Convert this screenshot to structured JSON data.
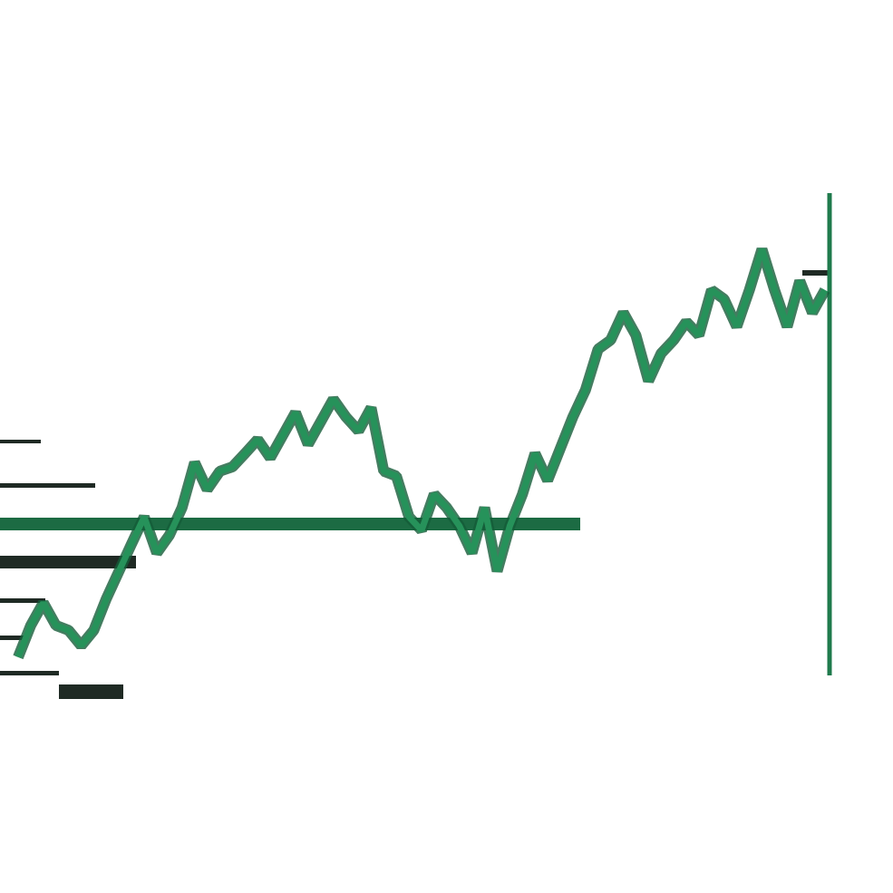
{
  "chart_data": {
    "type": "line",
    "categories": [
      null,
      null,
      null,
      null,
      null,
      null,
      null,
      null,
      null,
      null,
      null,
      null,
      null,
      null,
      null,
      null,
      null,
      null,
      null,
      null,
      null,
      null,
      null,
      null,
      null,
      null,
      null,
      null,
      null,
      null,
      null,
      null,
      null,
      null,
      null,
      null,
      null,
      null,
      null,
      null,
      null,
      null,
      null,
      null,
      null,
      null,
      null,
      null,
      null,
      null,
      null,
      null,
      null,
      null,
      null,
      null,
      null,
      null,
      null,
      null,
      null,
      null,
      null,
      null,
      null
    ],
    "series": [
      {
        "color": "#26925a",
        "values": [
          3.8,
          10.4,
          15.1,
          10.4,
          9.4,
          6.2,
          9.4,
          16.0,
          21.7,
          27.4,
          33.0,
          25.5,
          29.2,
          34.9,
          44.3,
          38.7,
          42.5,
          43.4,
          46.2,
          49.1,
          45.3,
          50.0,
          54.7,
          48.1,
          52.8,
          57.5,
          53.8,
          50.9,
          55.7,
          42.5,
          41.5,
          33.0,
          30.2,
          37.7,
          34.9,
          31.1,
          25.5,
          34.9,
          21.7,
          31.1,
          37.7,
          46.2,
          40.6,
          47.2,
          53.8,
          59.4,
          67.9,
          69.8,
          75.5,
          70.8,
          61.3,
          67.0,
          69.8,
          73.6,
          70.8,
          80.2,
          78.3,
          72.6,
          80.2,
          88.7,
          80.2,
          72.6,
          82.1,
          75.5,
          80.2
        ]
      }
    ],
    "reference_line": 31.5,
    "ylim": [
      0,
      100
    ]
  }
}
